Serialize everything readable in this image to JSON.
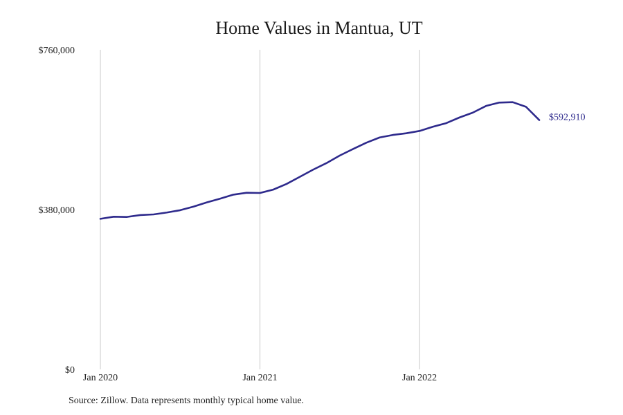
{
  "chart_data": {
    "type": "line",
    "title": "Home Values in Mantua, UT",
    "xlabel": "",
    "ylabel": "",
    "x_tick_labels": [
      "Jan 2020",
      "Jan 2021",
      "Jan 2022"
    ],
    "y_tick_labels": [
      "$760,000",
      "$380,000",
      "$0"
    ],
    "y_ticks": [
      760000,
      380000,
      0
    ],
    "ylim": [
      0,
      760000
    ],
    "xlim": [
      "2020-01",
      "2022-10"
    ],
    "grid": "vertical lines at year starts",
    "end_label": "$592,910",
    "series": [
      {
        "color": "#2e2a8c",
        "x": [
          "2020-01",
          "2020-02",
          "2020-03",
          "2020-04",
          "2020-05",
          "2020-06",
          "2020-07",
          "2020-08",
          "2020-09",
          "2020-10",
          "2020-11",
          "2020-12",
          "2021-01",
          "2021-02",
          "2021-03",
          "2021-04",
          "2021-05",
          "2021-06",
          "2021-07",
          "2021-08",
          "2021-09",
          "2021-10",
          "2021-11",
          "2021-12",
          "2022-01",
          "2022-02",
          "2022-03",
          "2022-04",
          "2022-05",
          "2022-06",
          "2022-07",
          "2022-08",
          "2022-09",
          "2022-10"
        ],
        "values": [
          358000,
          363000,
          362500,
          367000,
          368500,
          373000,
          378500,
          387000,
          397000,
          406000,
          415500,
          420000,
          419500,
          427500,
          441000,
          458000,
          475000,
          490500,
          508500,
          524000,
          539000,
          551500,
          557500,
          561500,
          567000,
          577000,
          585500,
          599000,
          610500,
          626500,
          634500,
          635500,
          624500,
          592910
        ]
      }
    ]
  },
  "source_note": "Source: Zillow. Data represents monthly typical home value."
}
